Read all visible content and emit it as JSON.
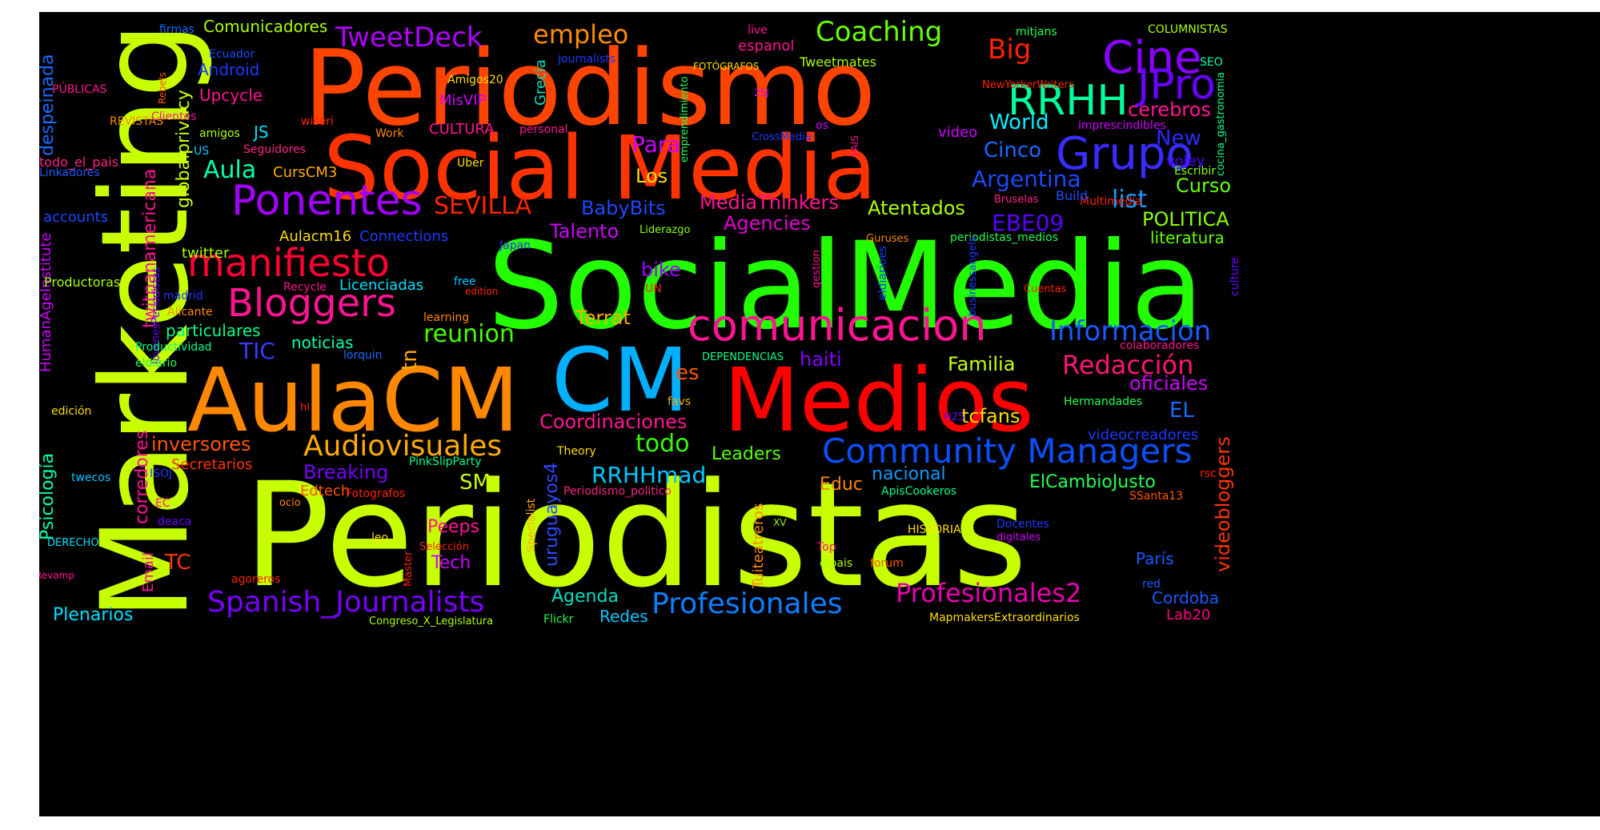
{
  "words": [
    {
      "text": "Periodistas",
      "color": "#c8ff00"
    },
    {
      "text": "SocialMedia",
      "color": "#22ff00"
    },
    {
      "text": "Periodismo",
      "color": "#ff4400"
    },
    {
      "text": "Social Media",
      "color": "#ff3300"
    },
    {
      "text": "Marketing",
      "color": "#c8ff00"
    },
    {
      "text": "AulaCM",
      "color": "#ff8800"
    },
    {
      "text": "CM",
      "color": "#00b0ff"
    },
    {
      "text": "Medios",
      "color": "#ff0000"
    },
    {
      "text": "comunicacion",
      "color": "#ff1493"
    },
    {
      "text": "Grupo",
      "color": "#3a2bff"
    },
    {
      "text": "Cine",
      "color": "#8a00ff"
    },
    {
      "text": "RRHH",
      "color": "#00ff9c"
    },
    {
      "text": "JPro",
      "color": "#6a00ff"
    },
    {
      "text": "Ponentes",
      "color": "#a200ff"
    },
    {
      "text": "manifiesto",
      "color": "#ff0033"
    },
    {
      "text": "Bloggers",
      "color": "#ff1493"
    },
    {
      "text": "Community Managers",
      "color": "#0a50ff"
    },
    {
      "text": "Profesionales",
      "color": "#0a80ff"
    },
    {
      "text": "Spanish_Journalists",
      "color": "#7a00ff"
    },
    {
      "text": "Audiovisuales",
      "color": "#ffaa00"
    },
    {
      "text": "Informacion",
      "color": "#1a5aff"
    },
    {
      "text": "Redacción",
      "color": "#ff1477"
    },
    {
      "text": "Profesionales2",
      "color": "#e800b0"
    },
    {
      "text": "Coaching",
      "color": "#66ff00"
    },
    {
      "text": "TweetDeck",
      "color": "#b000ff"
    },
    {
      "text": "empleo",
      "color": "#ff8c00"
    },
    {
      "text": "Big",
      "color": "#ff2200"
    },
    {
      "text": "SEVILLA",
      "color": "#ff2400"
    },
    {
      "text": "reunion",
      "color": "#44ff00"
    },
    {
      "text": "Aula",
      "color": "#00ffae"
    },
    {
      "text": "Para",
      "color": "#d000ff"
    },
    {
      "text": "todo",
      "color": "#33ff00"
    },
    {
      "text": "RRHHmad",
      "color": "#00c8ff"
    },
    {
      "text": "EBE09",
      "color": "#5a00ff"
    },
    {
      "text": "list",
      "color": "#0aa0ff"
    },
    {
      "text": "Argentina",
      "color": "#1a4aff"
    },
    {
      "text": "Cinco",
      "color": "#1a6aff"
    },
    {
      "text": "World",
      "color": "#00f0ff"
    },
    {
      "text": "New",
      "color": "#2a2aff"
    },
    {
      "text": "cerebros",
      "color": "#ff1493"
    },
    {
      "text": "Curso",
      "color": "#66ff00"
    },
    {
      "text": "POLITICA",
      "color": "#88ff00"
    },
    {
      "text": "literatura",
      "color": "#66ff00"
    },
    {
      "text": "Atentados",
      "color": "#aaff00"
    },
    {
      "text": "MediaThinkers",
      "color": "#ff1493"
    },
    {
      "text": "Agencies",
      "color": "#e800d0"
    },
    {
      "text": "BabyBits",
      "color": "#1a4aff"
    },
    {
      "text": "Talento",
      "color": "#d000ff"
    },
    {
      "text": "Los",
      "color": "#ffdd00"
    },
    {
      "text": "bike",
      "color": "#a000ff"
    },
    {
      "text": "Terrat",
      "color": "#ffaa00"
    },
    {
      "text": "TIC",
      "color": "#3a3aff"
    },
    {
      "text": "tn",
      "color": "#ffaa00"
    },
    {
      "text": "es",
      "color": "#ff5500"
    },
    {
      "text": "haiti",
      "color": "#8a00ff"
    },
    {
      "text": "Familia",
      "color": "#c8ff00"
    },
    {
      "text": "oficiales",
      "color": "#d000ff"
    },
    {
      "text": "EL",
      "color": "#1a6aff"
    },
    {
      "text": "tcfans",
      "color": "#ffdd00"
    },
    {
      "text": "videobloggers",
      "color": "#ff3300"
    },
    {
      "text": "Coordinaciones",
      "color": "#ff1493"
    },
    {
      "text": "inversores",
      "color": "#ff5500"
    },
    {
      "text": "Secretarios",
      "color": "#ff3300"
    },
    {
      "text": "Breaking",
      "color": "#7a00ff"
    },
    {
      "text": "SM",
      "color": "#c8ff00"
    },
    {
      "text": "Leaders",
      "color": "#55ff00"
    },
    {
      "text": "nacional",
      "color": "#0a9aff"
    },
    {
      "text": "Educ",
      "color": "#ff8800"
    },
    {
      "text": "ElCambioJusto",
      "color": "#22ff55"
    },
    {
      "text": "videocreadores",
      "color": "#1a3aff"
    },
    {
      "text": "Peeps",
      "color": "#ff1493"
    },
    {
      "text": "Tech",
      "color": "#d000ff"
    },
    {
      "text": "TC",
      "color": "#ff3300"
    },
    {
      "text": "Agenda",
      "color": "#00e0c0"
    },
    {
      "text": "Redes",
      "color": "#00c8ff"
    },
    {
      "text": "Cordoba",
      "color": "#1a5aff"
    },
    {
      "text": "Lab20",
      "color": "#ff0088"
    },
    {
      "text": "París",
      "color": "#1a5aff"
    },
    {
      "text": "Plenarios",
      "color": "#00e0ff"
    },
    {
      "text": "Psicología",
      "color": "#00ffb0"
    },
    {
      "text": "Email",
      "color": "#ff1493"
    },
    {
      "text": "corredores",
      "color": "#ff1493"
    },
    {
      "text": "uruguayos4",
      "color": "#2a4aff"
    },
    {
      "text": "Tuiteatreros",
      "color": "#ff8800"
    },
    {
      "text": "twitpanamericana",
      "color": "#ff1493"
    },
    {
      "text": "globalprivacy",
      "color": "#c8ff00"
    },
    {
      "text": "despeinada",
      "color": "#1a6aff"
    },
    {
      "text": "todo_el_pais",
      "color": "#ff2288"
    },
    {
      "text": "HumanAgeInstitute",
      "color": "#d000ff"
    },
    {
      "text": "particulares",
      "color": "#00ff88"
    },
    {
      "text": "noticias",
      "color": "#00ffb0"
    },
    {
      "text": "Licenciadas",
      "color": "#00e0ff"
    },
    {
      "text": "twitter",
      "color": "#aaff00"
    },
    {
      "text": "Aulacm16",
      "color": "#ffdd00"
    },
    {
      "text": "Connections",
      "color": "#1a3aff"
    },
    {
      "text": "CursCM3",
      "color": "#ffaa00"
    },
    {
      "text": "JS",
      "color": "#00e0ff"
    },
    {
      "text": "Upcycle",
      "color": "#ff1493"
    },
    {
      "text": "Android",
      "color": "#1a3aff"
    },
    {
      "text": "Comunicadores",
      "color": "#aaff00"
    },
    {
      "text": "Grecia",
      "color": "#00e0c0"
    },
    {
      "text": "MisVIP",
      "color": "#d000ff"
    },
    {
      "text": "CULTURA",
      "color": "#ff1493"
    },
    {
      "text": "espanol",
      "color": "#ff1493"
    },
    {
      "text": "Tweetmates",
      "color": "#aaff00"
    },
    {
      "text": "video",
      "color": "#d000ff"
    },
    {
      "text": "imprescindibles",
      "color": "#d000ff"
    },
    {
      "text": "voley",
      "color": "#4a00ff"
    },
    {
      "text": "firmas",
      "color": "#1a6aff"
    },
    {
      "text": "Ecuador",
      "color": "#1a4aff"
    },
    {
      "text": "journalists",
      "color": "#1a3aff"
    },
    {
      "text": "FOTÓGRAFOS",
      "color": "#ffdd00"
    },
    {
      "text": "live",
      "color": "#ff1493"
    },
    {
      "text": "mitjans",
      "color": "#22ff55"
    },
    {
      "text": "COLUMNISTAS",
      "color": "#aaff00"
    },
    {
      "text": "SEO",
      "color": "#00ffb0"
    },
    {
      "text": "NewYorkerWriters",
      "color": "#ff2200"
    },
    {
      "text": "cocina_gastronomia",
      "color": "#00ff88"
    },
    {
      "text": "PÚBLICAS",
      "color": "#ff1493"
    },
    {
      "text": "REVISTAS",
      "color": "#ff8800"
    },
    {
      "text": "Linkadores",
      "color": "#1a5aff"
    },
    {
      "text": "Clientes",
      "color": "#ff1493"
    },
    {
      "text": "amigos",
      "color": "#aaff00"
    },
    {
      "text": "US",
      "color": "#00c8ff"
    },
    {
      "text": "Seguidores",
      "color": "#ff2288"
    },
    {
      "text": "Rebels",
      "color": "#ff5500"
    },
    {
      "text": "Amigos20",
      "color": "#ffdd00"
    },
    {
      "text": "wiseri",
      "color": "#ff2200"
    },
    {
      "text": "Work",
      "color": "#ff8800"
    },
    {
      "text": "Uber",
      "color": "#ffdd00"
    },
    {
      "text": "personal",
      "color": "#ff1493"
    },
    {
      "text": "emprendimiento",
      "color": "#22ff55"
    },
    {
      "text": "25J",
      "color": "#d000ff"
    },
    {
      "text": "CrossMedia",
      "color": "#1a3aff"
    },
    {
      "text": "os",
      "color": "#d000ff"
    },
    {
      "text": "PAIS",
      "color": "#ff1493"
    },
    {
      "text": "Escribir",
      "color": "#88ff00"
    },
    {
      "text": "Multimedia",
      "color": "#ff2200"
    },
    {
      "text": "Bruselas",
      "color": "#ff2288"
    },
    {
      "text": "Build",
      "color": "#1a4aff"
    },
    {
      "text": "accounts",
      "color": "#1a4aff"
    },
    {
      "text": "Productoras",
      "color": "#aaff00"
    },
    {
      "text": "madrid",
      "color": "#1a3aff"
    },
    {
      "text": "Alicante",
      "color": "#ff8800"
    },
    {
      "text": "JovenesPeriodistas",
      "color": "#6a00ff"
    },
    {
      "text": "Recycle",
      "color": "#ff1493"
    },
    {
      "text": "free",
      "color": "#00c8ff"
    },
    {
      "text": "edition",
      "color": "#ff2200"
    },
    {
      "text": "UN",
      "color": "#ff2200"
    },
    {
      "text": "Japan",
      "color": "#3a2bff"
    },
    {
      "text": "Liderazgo",
      "color": "#88ff00"
    },
    {
      "text": "Guruses",
      "color": "#ff8800"
    },
    {
      "text": "gestion",
      "color": "#ff1493"
    },
    {
      "text": "eldiarioes",
      "color": "#1a3aff"
    },
    {
      "text": "periodistas_medios",
      "color": "#22ff55"
    },
    {
      "text": "businessangels",
      "color": "#1a3aff"
    },
    {
      "text": "Cuentas",
      "color": "#ff2200"
    },
    {
      "text": "culture",
      "color": "#6a00ff"
    },
    {
      "text": "learning",
      "color": "#ff8800"
    },
    {
      "text": "lorquin",
      "color": "#1a6aff"
    },
    {
      "text": "Productividad",
      "color": "#00ff88"
    },
    {
      "text": "eldiario",
      "color": "#22ff55"
    },
    {
      "text": "DEPENDENCIAS",
      "color": "#00ff88"
    },
    {
      "text": "colaboradores",
      "color": "#ff1493"
    },
    {
      "text": "favs",
      "color": "#ffaa00"
    },
    {
      "text": "hl",
      "color": "#ff2200"
    },
    {
      "text": "edición",
      "color": "#ffdd00"
    },
    {
      "text": "Hermandades",
      "color": "#22ff55"
    },
    {
      "text": "H25",
      "color": "#6a00ff"
    },
    {
      "text": "Theory",
      "color": "#ffdd00"
    },
    {
      "text": "PinkSlipParty",
      "color": "#00ff88"
    },
    {
      "text": "ISOJ",
      "color": "#1a3aff"
    },
    {
      "text": "twecos",
      "color": "#00c8ff"
    },
    {
      "text": "EC",
      "color": "#ff1493"
    },
    {
      "text": "Edtech",
      "color": "#ff5500"
    },
    {
      "text": "ocio",
      "color": "#ff8800"
    },
    {
      "text": "Fotografos",
      "color": "#ff2200"
    },
    {
      "text": "deaca",
      "color": "#6a00ff"
    },
    {
      "text": "DERECHO",
      "color": "#00e0ff"
    },
    {
      "text": "Revamp",
      "color": "#ff1493"
    },
    {
      "text": "agoreros",
      "color": "#ff2200"
    },
    {
      "text": "leo",
      "color": "#ffdd00"
    },
    {
      "text": "Selección",
      "color": "#ff2200"
    },
    {
      "text": "Master",
      "color": "#ff2200"
    },
    {
      "text": "Specialist",
      "color": "#ffaa00"
    },
    {
      "text": "XV",
      "color": "#88ff00"
    },
    {
      "text": "Periodismo_politico",
      "color": "#ff2288"
    },
    {
      "text": "ApisCookeros",
      "color": "#00ff88"
    },
    {
      "text": "rsc",
      "color": "#ff2200"
    },
    {
      "text": "SSanta13",
      "color": "#ff5500"
    },
    {
      "text": "Docentes",
      "color": "#1a3aff"
    },
    {
      "text": "digitales",
      "color": "#d000ff"
    },
    {
      "text": "HISTORIA",
      "color": "#ffdd00"
    },
    {
      "text": "Top",
      "color": "#ff1493"
    },
    {
      "text": "elpais",
      "color": "#aaff00"
    },
    {
      "text": "forum",
      "color": "#ff5500"
    },
    {
      "text": "red",
      "color": "#1a5aff"
    },
    {
      "text": "Congreso_X_Legislatura",
      "color": "#aaff00"
    },
    {
      "text": "Flickr",
      "color": "#22ff55"
    },
    {
      "text": "MapmakersExtraordinarios",
      "color": "#ffdd00"
    }
  ]
}
